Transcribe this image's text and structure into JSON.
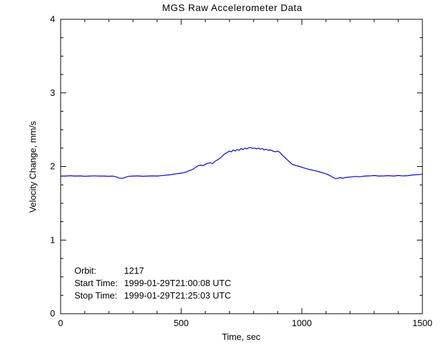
{
  "chart_data": {
    "type": "line",
    "title": "MGS Raw Accelerometer Data",
    "xlabel": "Time, sec",
    "ylabel": "Velocity Change, mm/s",
    "xlim": [
      0,
      1500
    ],
    "ylim": [
      0,
      4
    ],
    "xticks": [
      0,
      500,
      1000,
      1500
    ],
    "yticks": [
      0,
      1,
      2,
      3,
      4
    ],
    "x_minor_step": 100,
    "y_minor_step": 0.25,
    "grid": false,
    "legend": "none",
    "line_color": "#0000cd",
    "axis_color": "#000000",
    "background_color": "#ffffff",
    "annotations": [
      {
        "label": "Orbit:",
        "value": "1217"
      },
      {
        "label": "Start Time:",
        "value": "1999-01-29T21:00:08 UTC"
      },
      {
        "label": "Stop Time:",
        "value": "1999-01-29T21:25:03 UTC"
      }
    ],
    "series": [
      {
        "name": "velocity-change",
        "x": [
          0,
          20,
          40,
          60,
          80,
          100,
          120,
          140,
          160,
          180,
          200,
          215,
          230,
          240,
          250,
          260,
          270,
          285,
          300,
          320,
          340,
          360,
          380,
          400,
          415,
          430,
          445,
          460,
          475,
          490,
          500,
          510,
          520,
          530,
          540,
          550,
          560,
          570,
          580,
          590,
          600,
          610,
          620,
          630,
          640,
          650,
          660,
          670,
          680,
          690,
          700,
          708,
          716,
          724,
          732,
          740,
          748,
          756,
          764,
          772,
          780,
          788,
          796,
          804,
          812,
          820,
          828,
          836,
          844,
          852,
          860,
          870,
          880,
          890,
          900,
          910,
          920,
          930,
          940,
          950,
          960,
          970,
          980,
          990,
          1000,
          1015,
          1030,
          1045,
          1060,
          1075,
          1090,
          1105,
          1120,
          1130,
          1140,
          1150,
          1160,
          1170,
          1180,
          1195,
          1210,
          1225,
          1240,
          1260,
          1280,
          1300,
          1320,
          1340,
          1360,
          1380,
          1400,
          1420,
          1440,
          1460,
          1480,
          1500
        ],
        "y": [
          1.87,
          1.87,
          1.875,
          1.87,
          1.872,
          1.868,
          1.87,
          1.873,
          1.87,
          1.87,
          1.868,
          1.87,
          1.86,
          1.845,
          1.84,
          1.842,
          1.855,
          1.868,
          1.87,
          1.872,
          1.868,
          1.87,
          1.872,
          1.87,
          1.875,
          1.88,
          1.885,
          1.89,
          1.9,
          1.905,
          1.91,
          1.915,
          1.925,
          1.94,
          1.95,
          1.965,
          1.99,
          2.01,
          2.02,
          2.01,
          2.03,
          2.045,
          2.05,
          2.04,
          2.07,
          2.09,
          2.11,
          2.14,
          2.17,
          2.19,
          2.21,
          2.2,
          2.225,
          2.21,
          2.23,
          2.22,
          2.245,
          2.23,
          2.25,
          2.24,
          2.255,
          2.26,
          2.245,
          2.25,
          2.24,
          2.25,
          2.235,
          2.245,
          2.225,
          2.235,
          2.22,
          2.225,
          2.21,
          2.2,
          2.21,
          2.19,
          2.15,
          2.12,
          2.09,
          2.06,
          2.03,
          2.02,
          2.01,
          2.0,
          1.99,
          1.975,
          1.96,
          1.95,
          1.94,
          1.925,
          1.91,
          1.895,
          1.87,
          1.85,
          1.835,
          1.84,
          1.85,
          1.84,
          1.85,
          1.855,
          1.86,
          1.865,
          1.86,
          1.87,
          1.872,
          1.878,
          1.87,
          1.872,
          1.876,
          1.87,
          1.878,
          1.872,
          1.876,
          1.885,
          1.888,
          1.895
        ]
      }
    ]
  }
}
